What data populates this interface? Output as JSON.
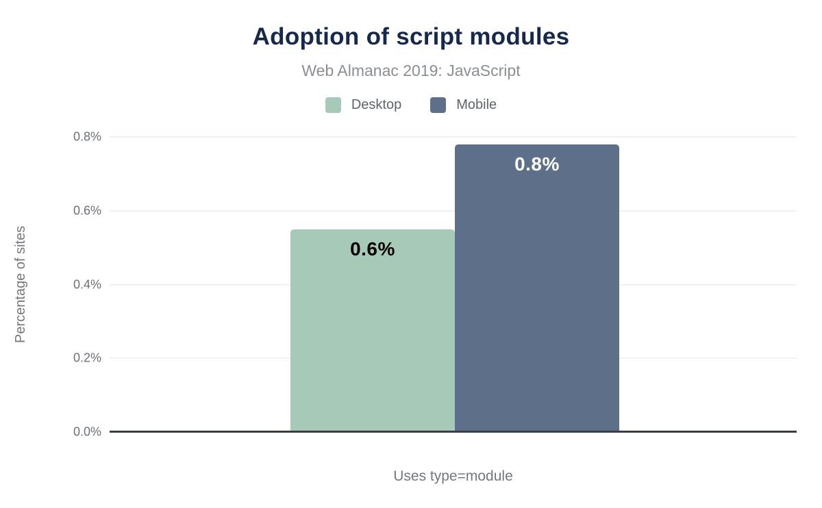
{
  "chart_data": {
    "type": "bar",
    "title": "Adoption of script modules",
    "subtitle": "Web Almanac 2019: JavaScript",
    "categories": [
      "Uses type=module"
    ],
    "series": [
      {
        "name": "Desktop",
        "values": [
          0.55
        ],
        "value_labels": [
          "0.6%"
        ],
        "color": "#a7cab8",
        "value_label_color": "#000000"
      },
      {
        "name": "Mobile",
        "values": [
          0.78
        ],
        "value_labels": [
          "0.8%"
        ],
        "color": "#5e7089",
        "value_label_color": "#ffffff"
      }
    ],
    "xlabel": "Uses type=module",
    "ylabel": "Percentage of sites",
    "ylim": [
      0,
      0.8
    ],
    "yticks": [
      {
        "value": 0.0,
        "label": "0.0%"
      },
      {
        "value": 0.2,
        "label": "0.2%"
      },
      {
        "value": 0.4,
        "label": "0.4%"
      },
      {
        "value": 0.6,
        "label": "0.6%"
      },
      {
        "value": 0.8,
        "label": "0.8%"
      }
    ],
    "grid": true,
    "legend_position": "top"
  },
  "colors": {
    "title": "#16294d",
    "subtitle": "#8a8f95",
    "legend_label": "#5f646a",
    "tick_label": "#6b7076",
    "axis_label": "#73787e",
    "gridline": "#f1f1f3",
    "baseline": "#383d45",
    "background": "#ffffff"
  }
}
